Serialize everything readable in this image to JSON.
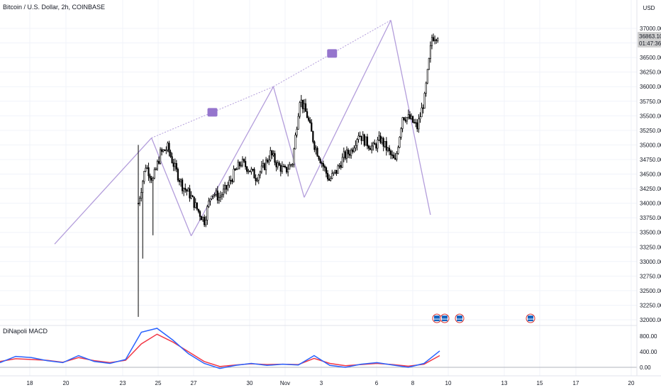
{
  "header": {
    "title": "Bitcoin / U.S. Dollar, 2h, COINBASE",
    "currency_button": "USD"
  },
  "price_badge": {
    "price": "36863.10",
    "countdown": "01:47:36"
  },
  "macd": {
    "label": "DiNapoli MACD"
  },
  "colors": {
    "candle": "#000000",
    "pattern_line": "#b39ddb",
    "macd_fast": "#2962ff",
    "macd_slow": "#f23645",
    "badge_bg": "#9575cd",
    "grid": "#f0f3fa"
  },
  "event_icons": [
    "us-flag-icon",
    "us-flag-icon",
    "us-flag-icon",
    "us-flag-icon"
  ],
  "chart_data": {
    "type": "candlestick",
    "x_tick_labels": [
      "18",
      "20",
      "23",
      "25",
      "27",
      "30",
      "Nov",
      "3",
      "6",
      "8",
      "10",
      "13",
      "15",
      "17",
      "20"
    ],
    "y_tick_labels": [
      "37000.00",
      "36750.00",
      "36500.00",
      "36250.00",
      "36000.00",
      "35750.00",
      "35500.00",
      "35250.00",
      "35000.00",
      "34750.00",
      "34500.00",
      "34250.00",
      "34000.00",
      "33750.00",
      "33500.00",
      "33250.00",
      "33000.00",
      "32750.00",
      "32500.00",
      "32250.00",
      "32000.00"
    ],
    "ylim": [
      31850,
      37250
    ],
    "macd_y_tick_labels": [
      "800.00",
      "400.00",
      "0.00"
    ],
    "macd_ylim": [
      -150,
      1050
    ],
    "price_series_bar_index": [
      0,
      5,
      10,
      15,
      20,
      25,
      30,
      35,
      40,
      45,
      50,
      55,
      60,
      65,
      70,
      75,
      80,
      85,
      90,
      95,
      100,
      105,
      110,
      115,
      120,
      125,
      130,
      135,
      140,
      145,
      150,
      155,
      160,
      165,
      170,
      175,
      180,
      185,
      190,
      195,
      200,
      205,
      210,
      215,
      220,
      225,
      230,
      235
    ],
    "close_path": [
      34000,
      34650,
      34400,
      34850,
      34950,
      34600,
      34300,
      34150,
      33900,
      33700,
      34200,
      34100,
      34250,
      34500,
      34700,
      34600,
      34450,
      34600,
      34850,
      34650,
      34550,
      34700,
      35800,
      35500,
      35000,
      34700,
      34400,
      34550,
      34800,
      34900,
      35200,
      35050,
      34950,
      35100,
      34900,
      34700,
      35500,
      35450,
      35300,
      35800,
      36850,
      36900,
      36880,
      36870,
      36865,
      36863,
      36863,
      36863
    ],
    "zigzag_pattern": [
      {
        "bar": -57,
        "price": 33300
      },
      {
        "bar": 9,
        "price": 35120
      },
      {
        "bar": 36,
        "price": 33440
      },
      {
        "bar": 92,
        "price": 36000
      },
      {
        "bar": 113,
        "price": 34100
      },
      {
        "bar": 172,
        "price": 37140
      },
      {
        "bar": 199,
        "price": 33800
      }
    ],
    "macd_fast": [
      120,
      280,
      250,
      170,
      120,
      300,
      150,
      100,
      200,
      900,
      1000,
      700,
      350,
      100,
      -30,
      50,
      100,
      50,
      80,
      60,
      300,
      50,
      0,
      80,
      120,
      60,
      0,
      100,
      420
    ],
    "macd_slow": [
      150,
      220,
      200,
      180,
      130,
      250,
      170,
      120,
      180,
      600,
      850,
      650,
      400,
      150,
      20,
      60,
      90,
      70,
      80,
      70,
      230,
      100,
      40,
      70,
      100,
      70,
      30,
      80,
      300
    ]
  }
}
